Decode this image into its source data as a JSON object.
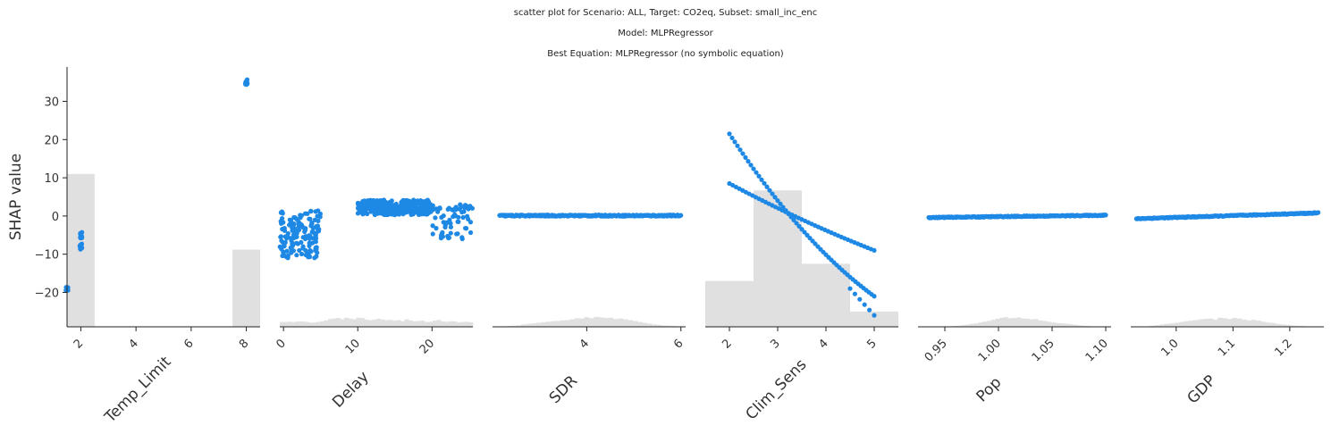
{
  "titles": {
    "line1": "scatter plot for Scenario: ALL, Target: CO2eq, Subset: small_inc_enc",
    "line2": "Model: MLPRegressor",
    "line3": "Best Equation: MLPRegressor (no symbolic equation)"
  },
  "colors": {
    "points": "#1e88e5",
    "hist": "#e0e0e0",
    "axis": "#222222"
  },
  "chart_data": {
    "type": "scatter",
    "ylabel": "SHAP value",
    "ylim": [
      -29,
      39
    ],
    "yticks": [
      30,
      20,
      10,
      0,
      -10,
      -20
    ],
    "panels": [
      {
        "xlabel": "Temp_Limit",
        "xlim": [
          1.5,
          8.5
        ],
        "xticks": [
          2,
          4,
          6,
          8
        ],
        "tick_rotation": 45,
        "hist": [
          {
            "x0": 1.5,
            "x1": 2.5,
            "h": 11
          },
          {
            "x0": 7.5,
            "x1": 8.5,
            "h": -8.8
          }
        ],
        "clusters": [
          {
            "x": 1.5,
            "xspread": 0.04,
            "y": -19,
            "yspread": 0.5,
            "n": 6
          },
          {
            "x": 2.0,
            "xspread": 0.04,
            "y": -5,
            "yspread": 0.8,
            "n": 12
          },
          {
            "x": 2.0,
            "xspread": 0.04,
            "y": -8,
            "yspread": 0.9,
            "n": 12
          },
          {
            "x": 8.0,
            "xspread": 0.04,
            "y": 35,
            "yspread": 0.7,
            "n": 14
          }
        ]
      },
      {
        "xlabel": "Delay",
        "xlim": [
          -0.5,
          25.5
        ],
        "xticks": [
          0,
          10,
          20
        ],
        "tick_rotation": 45,
        "hist_bins": [
          -0.5,
          25.5
        ],
        "hist_counts": [
          1.8,
          1.8,
          1.9,
          1.8,
          2.0,
          2.0,
          1.9,
          1.6,
          1.6,
          1.8,
          2.1,
          2.4,
          2.9,
          3.1,
          3.3,
          2.8,
          3.4,
          3.1,
          2.8,
          3.4,
          3.3,
          2.7,
          2.5,
          2.7,
          3.0,
          2.7,
          2.5,
          2.6,
          2.3,
          2.5,
          2.1,
          2.8,
          2.4,
          2.1,
          2.2,
          2.3,
          1.8,
          1.9,
          2.3,
          2.6,
          2.0,
          1.9,
          2.1,
          2.0,
          1.7,
          1.8,
          1.9,
          1.7
        ],
        "clusters": [
          {
            "x0": -0.5,
            "x1": 5,
            "y0": -11,
            "y1": 1.5,
            "n": 150
          },
          {
            "x0": 10,
            "x1": 20,
            "y0": 0.3,
            "y1": 4.2,
            "n": 320
          },
          {
            "x0": 20,
            "x1": 25.5,
            "y0": -6,
            "y1": 3,
            "n": 70
          }
        ]
      },
      {
        "xlabel": "SDR",
        "xlim": [
          2.0,
          6.1
        ],
        "xticks": [
          4,
          6
        ],
        "tick_rotation": 45,
        "hist_bins": [
          2.0,
          6.1
        ],
        "hist_counts": [
          0.1,
          0.2,
          0.2,
          0.3,
          0.4,
          0.6,
          0.9,
          1.1,
          1.3,
          1.5,
          1.7,
          1.9,
          2.1,
          2.2,
          2.4,
          2.5,
          2.8,
          3.2,
          3.1,
          3.6,
          3.2,
          3.7,
          3.5,
          3.3,
          3.4,
          2.9,
          3.1,
          2.8,
          2.5,
          2.2,
          1.8,
          1.5,
          1.2,
          0.9,
          0.7,
          0.5,
          0.4,
          0.3,
          0.2,
          0.2
        ],
        "line": {
          "x0": 2.15,
          "x1": 6.0,
          "y0": 0.1,
          "y1": 0.1,
          "jitter": 0.35,
          "n": 260
        }
      },
      {
        "xlabel": "Clim_Sens",
        "xlim": [
          1.5,
          5.5
        ],
        "xticks": [
          2,
          3,
          4,
          5
        ],
        "tick_rotation": 45,
        "hist": [
          {
            "x0": 1.5,
            "x1": 2.5,
            "h": -17
          },
          {
            "x0": 2.5,
            "x1": 3.5,
            "h": 6.7
          },
          {
            "x0": 3.5,
            "x1": 4.5,
            "h": -12.5
          },
          {
            "x0": 4.5,
            "x1": 5.5,
            "h": -25
          }
        ],
        "curves": [
          {
            "x0": 2.0,
            "x1": 5.0,
            "y0": 21.5,
            "y1": -21,
            "bend": 0.35,
            "n": 55
          },
          {
            "x0": 2.0,
            "x1": 5.0,
            "y0": 8.5,
            "y1": -9,
            "bend": 0.15,
            "n": 45
          },
          {
            "x0": 4.5,
            "x1": 5.0,
            "y0": -19,
            "y1": -26,
            "bend": 0,
            "n": 6
          }
        ]
      },
      {
        "xlabel": "Pop",
        "xlim": [
          0.925,
          1.105
        ],
        "xticks": [
          0.95,
          1.0,
          1.05,
          1.1
        ],
        "ticklabels": [
          "0.95",
          "1.00",
          "1.05",
          "1.10"
        ],
        "tick_rotation": 45,
        "hist_bins": [
          0.925,
          1.105
        ],
        "hist_counts": [
          0,
          0,
          0,
          0,
          0,
          0,
          0,
          0.2,
          0.3,
          0.4,
          0.6,
          0.8,
          1.1,
          1.3,
          1.6,
          1.9,
          2.2,
          2.6,
          3.0,
          3.4,
          3.6,
          3.2,
          3.3,
          3.5,
          3.1,
          3.0,
          2.8,
          2.9,
          2.4,
          2.2,
          1.9,
          1.6,
          1.4,
          1.3,
          1.2,
          1.0,
          0.8,
          0.6,
          0.4,
          0.3,
          0.2,
          0.1,
          0,
          0,
          0
        ],
        "line": {
          "x0": 0.935,
          "x1": 1.1,
          "y0": -0.4,
          "y1": 0.2,
          "jitter": 0.25,
          "n": 240
        }
      },
      {
        "xlabel": "GDP",
        "xlim": [
          0.92,
          1.26
        ],
        "xticks": [
          1.0,
          1.1,
          1.2
        ],
        "ticklabels": [
          "1.0",
          "1.1",
          "1.2"
        ],
        "tick_rotation": 45,
        "hist_bins": [
          0.92,
          1.26
        ],
        "hist_counts": [
          0,
          0,
          0,
          0.2,
          0.4,
          0.6,
          0.9,
          1.1,
          1.3,
          1.5,
          1.8,
          2.1,
          2.3,
          2.5,
          2.8,
          3.0,
          3.1,
          2.7,
          3.4,
          3.2,
          2.9,
          3.3,
          3.1,
          2.7,
          2.4,
          2.6,
          2.3,
          1.9,
          1.6,
          1.4,
          1.1,
          0.9,
          0.7,
          0.5,
          0.4,
          0.3,
          0.2,
          0.1,
          0,
          0
        ],
        "line": {
          "x0": 0.93,
          "x1": 1.25,
          "y0": -0.7,
          "y1": 0.8,
          "jitter": 0.25,
          "n": 240
        }
      }
    ]
  }
}
